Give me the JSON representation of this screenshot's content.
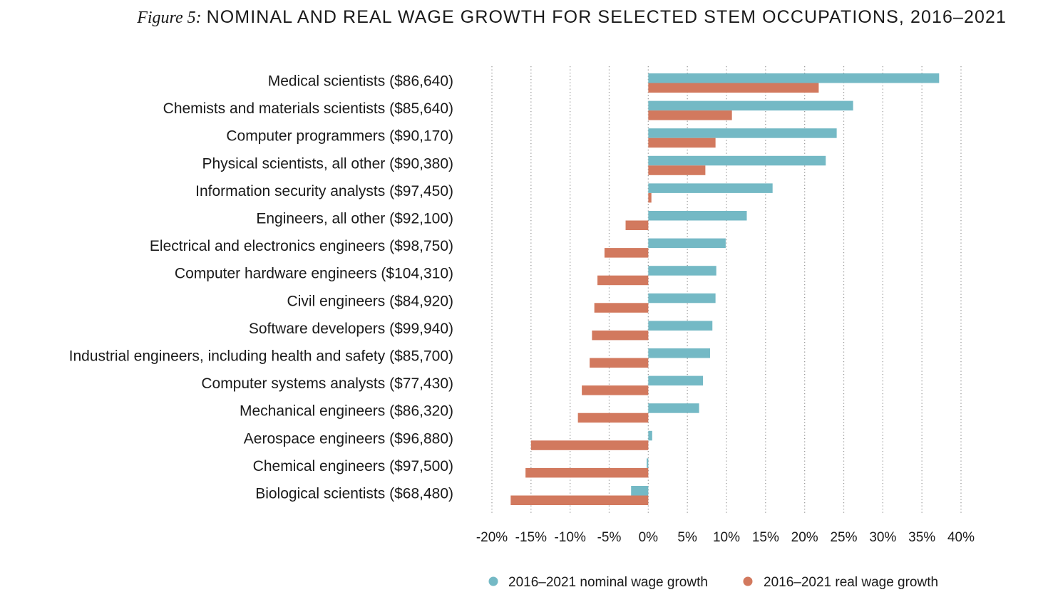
{
  "figure": {
    "prefix": "Figure 5:",
    "title": "NOMINAL AND REAL WAGE GROWTH FOR SELECTED STEM OCCUPATIONS, 2016–2021"
  },
  "chart_data": {
    "type": "bar",
    "orientation": "horizontal",
    "title": "NOMINAL AND REAL WAGE GROWTH FOR SELECTED STEM OCCUPATIONS, 2016–2021",
    "xlabel": "",
    "ylabel": "",
    "xlim": [
      -20,
      40
    ],
    "xticks": [
      -20,
      -15,
      -10,
      -5,
      0,
      5,
      10,
      15,
      20,
      25,
      30,
      35,
      40
    ],
    "xtick_labels": [
      "-20%",
      "-15%",
      "-10%",
      "-5%",
      "0%",
      "5%",
      "10%",
      "15%",
      "20%",
      "25%",
      "30%",
      "35%",
      "40%"
    ],
    "grid": "vertical dotted",
    "legend_position": "bottom",
    "categories": [
      "Medical scientists ($86,640)",
      "Chemists and materials scientists ($85,640)",
      "Computer programmers ($90,170)",
      "Physical scientists, all other ($90,380)",
      "Information security analysts ($97,450)",
      "Engineers, all other ($92,100)",
      "Electrical and electronics engineers ($98,750)",
      "Computer hardware engineers ($104,310)",
      "Civil engineers ($84,920)",
      "Software developers ($99,940)",
      "Industrial engineers, including health and safety ($85,700)",
      "Computer systems analysts ($77,430)",
      "Mechanical engineers ($86,320)",
      "Aerospace engineers ($96,880)",
      "Chemical engineers ($97,500)",
      "Biological scientists ($68,480)"
    ],
    "series": [
      {
        "name": "2016–2021 nominal wage growth",
        "color": "#74b9c5",
        "values": [
          37.2,
          26.2,
          24.1,
          22.7,
          15.9,
          12.6,
          9.9,
          8.7,
          8.6,
          8.2,
          7.9,
          7.0,
          6.5,
          0.5,
          -0.2,
          -2.2
        ]
      },
      {
        "name": "2016–2021 real wage growth",
        "color": "#d2795e",
        "values": [
          21.8,
          10.7,
          8.6,
          7.3,
          0.4,
          -2.9,
          -5.6,
          -6.5,
          -6.9,
          -7.2,
          -7.5,
          -8.5,
          -9.0,
          -15.0,
          -15.7,
          -17.6
        ]
      }
    ]
  }
}
